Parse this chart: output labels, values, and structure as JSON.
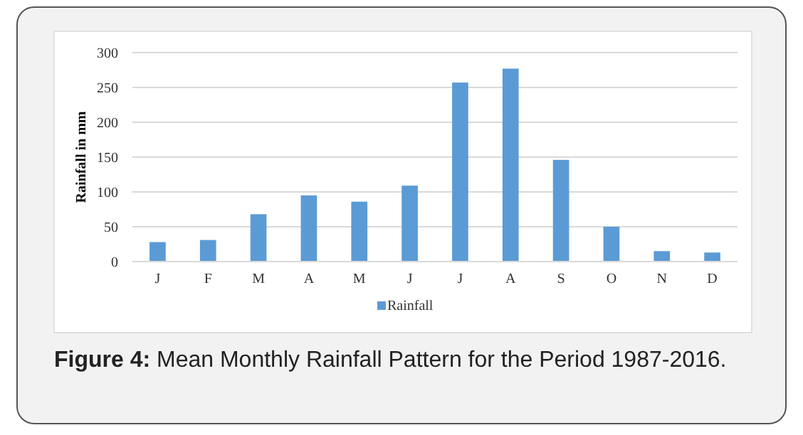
{
  "chart_data": {
    "type": "bar",
    "title": "Figure 4: Mean Monthly Rainfall Pattern for the Period 1987-2016.",
    "ylabel": "Rainfall in mm",
    "categories": [
      "J",
      "F",
      "M",
      "A",
      "M",
      "J",
      "J",
      "A",
      "S",
      "O",
      "N",
      "D"
    ],
    "series": [
      {
        "name": "Rainfall",
        "color": "#5b9bd5",
        "values": [
          28,
          31,
          68,
          95,
          86,
          109,
          257,
          277,
          146,
          50,
          15,
          13
        ]
      }
    ],
    "ylim": [
      0,
      300
    ],
    "yticks": [
      0,
      50,
      100,
      150,
      200,
      250,
      300
    ],
    "grid": "y",
    "legend": "bottom"
  }
}
